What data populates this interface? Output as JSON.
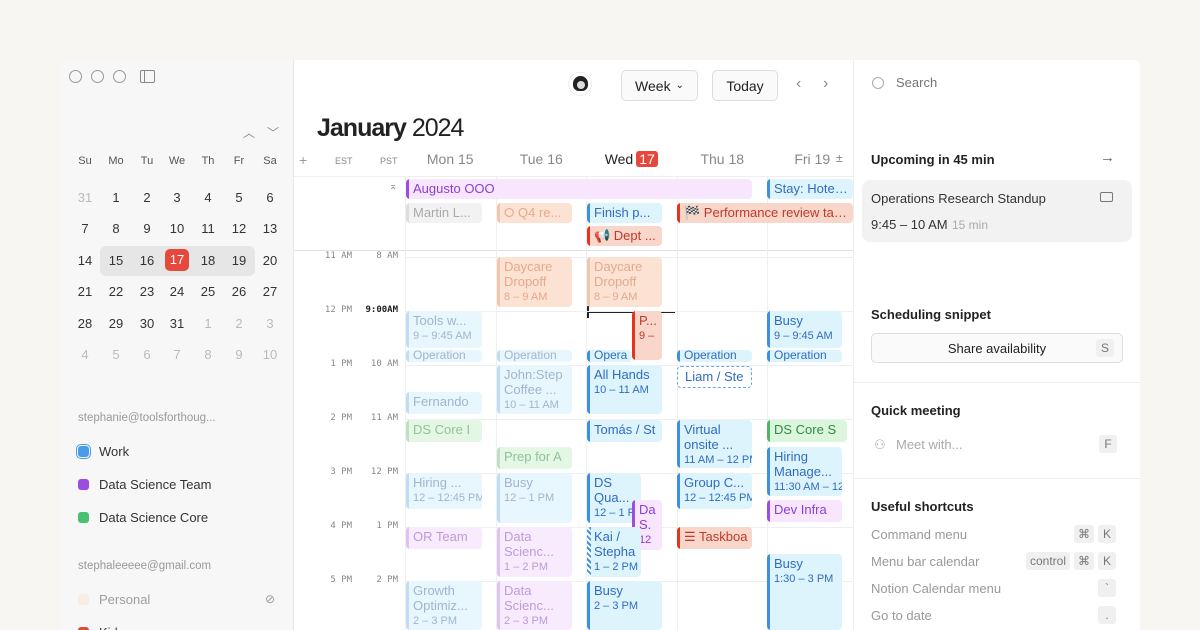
{
  "sidebar": {
    "mini_calendar": {
      "weekdays": [
        "Su",
        "Mo",
        "Tu",
        "We",
        "Th",
        "Fr",
        "Sa"
      ],
      "weeks": [
        [
          "31",
          "1",
          "2",
          "3",
          "4",
          "5",
          "6"
        ],
        [
          "7",
          "8",
          "9",
          "10",
          "11",
          "12",
          "13"
        ],
        [
          "14",
          "15",
          "16",
          "17",
          "18",
          "19",
          "20"
        ],
        [
          "21",
          "22",
          "23",
          "24",
          "25",
          "26",
          "27"
        ],
        [
          "28",
          "29",
          "30",
          "31",
          "1",
          "2",
          "3"
        ],
        [
          "4",
          "5",
          "6",
          "7",
          "8",
          "9",
          "10"
        ]
      ],
      "today": "17"
    },
    "accounts": [
      {
        "email": "stephanie@toolsforthoug...",
        "calendars": [
          {
            "name": "Work",
            "color": "#4a9ce8"
          },
          {
            "name": "Data Science Team",
            "color": "#9b4de0"
          },
          {
            "name": "Data Science Core",
            "color": "#4cc071"
          }
        ]
      },
      {
        "email": "stephaleeeee@gmail.com",
        "calendars": [
          {
            "name": "Personal",
            "color": "#fbe3d0"
          },
          {
            "name": "Kids",
            "color": "#e04a3a"
          }
        ]
      }
    ]
  },
  "header": {
    "view": "Week",
    "today": "Today",
    "month": "January",
    "year": "2024"
  },
  "timezones": [
    "EST",
    "PST"
  ],
  "days": [
    {
      "label": "Mon 15"
    },
    {
      "label": "Tue 16"
    },
    {
      "label": "Wed",
      "num": "17"
    },
    {
      "label": "Thu 18"
    },
    {
      "label": "Fri 19"
    }
  ],
  "times": {
    "est": [
      "11 AM",
      "12 PM",
      "1 PM",
      "2 PM",
      "3 PM",
      "4 PM",
      "5 PM"
    ],
    "pst": [
      "8 AM",
      "9:00AM",
      "10 AM",
      "11 AM",
      "12 PM",
      "1 PM",
      "2 PM"
    ]
  },
  "events": [
    {
      "title": "Augusto OOO",
      "scheme": "purple"
    },
    {
      "title": "Stay: Hotel P",
      "scheme": "blue"
    },
    {
      "title": "Martin L...",
      "scheme": "gray"
    },
    {
      "title": "⭘ Q4 re...",
      "scheme": "peachf"
    },
    {
      "title": "Finish p...",
      "scheme": "blue"
    },
    {
      "title": "📢 Dept ...",
      "scheme": "red"
    },
    {
      "title": "🏁 Performance review talks",
      "scheme": "red"
    },
    {
      "title": "Daycare Dropoff",
      "time": "8 – 9 AM",
      "scheme": "peachf"
    },
    {
      "title": "Daycare Dropoff",
      "time": "8 – 9 AM",
      "scheme": "peachf"
    },
    {
      "title": "Tools w...",
      "time": "9 – 9:45 AM",
      "scheme": "bluef"
    },
    {
      "title": "P...",
      "time": "9 –",
      "scheme": "red"
    },
    {
      "title": "Busy",
      "time": "9 – 9:45 AM",
      "scheme": "blue"
    },
    {
      "title": "Operation",
      "scheme": "bluef"
    },
    {
      "title": "Operation",
      "scheme": "bluef"
    },
    {
      "title": "Opera",
      "scheme": "blue"
    },
    {
      "title": "Operation",
      "scheme": "blue"
    },
    {
      "title": "Operation",
      "scheme": "blue"
    },
    {
      "title": "John:Step Coffee ...",
      "time": "10 – 11 AM",
      "scheme": "bluef"
    },
    {
      "title": "All Hands",
      "time": "10 – 11 AM",
      "scheme": "blue"
    },
    {
      "title": "Liam / Ste",
      "scheme": "dashed"
    },
    {
      "title": "Fernando",
      "scheme": "bluef"
    },
    {
      "title": "DS Core I",
      "scheme": "greenf"
    },
    {
      "title": "Tomás / St",
      "scheme": "blue"
    },
    {
      "title": "Virtual onsite ...",
      "time": "11 AM – 12 PM",
      "scheme": "blue"
    },
    {
      "title": "DS Core S",
      "scheme": "green"
    },
    {
      "title": "Prep for A",
      "scheme": "greenf"
    },
    {
      "title": "Hiring Manage...",
      "time": "11:30 AM – 12",
      "scheme": "blue"
    },
    {
      "title": "Hiring ...",
      "time": "12 – 12:45 PM",
      "scheme": "bluef"
    },
    {
      "title": "Busy",
      "time": "12 – 1 PM",
      "scheme": "bluef"
    },
    {
      "title": "DS Qua...",
      "time": "12 – 1 P",
      "scheme": "blue"
    },
    {
      "title": "Group C...",
      "time": "12 – 12:45 PM",
      "scheme": "blue"
    },
    {
      "title": "Dev Infra",
      "scheme": "purple"
    },
    {
      "title": "Da S.",
      "time": "12",
      "scheme": "purple"
    },
    {
      "title": "OR Team",
      "scheme": "purplef"
    },
    {
      "title": "Data Scienc...",
      "time": "1 – 2 PM",
      "scheme": "purplef"
    },
    {
      "title": "Kai / Stepha",
      "time": "1 – 2 PM",
      "scheme": "blue hatch"
    },
    {
      "title": "☰ Taskboa",
      "scheme": "red"
    },
    {
      "title": "Busy",
      "time": "1:30 – 3 PM",
      "scheme": "blue"
    },
    {
      "title": "Growth Optimiz...",
      "time": "2 – 3 PM",
      "scheme": "bluef"
    },
    {
      "title": "Data Scienc...",
      "time": "2 – 3 PM",
      "scheme": "purplef"
    },
    {
      "title": "Busy",
      "time": "2 – 3 PM",
      "scheme": "blue"
    }
  ],
  "right": {
    "search_placeholder": "Search",
    "upcoming_title": "Upcoming in 45 min",
    "upcoming_event": {
      "title": "Operations Research Standup",
      "time": "9:45 – 10 AM",
      "duration": "15 min"
    },
    "snippet_title": "Scheduling snippet",
    "share_label": "Share availability",
    "share_key": "S",
    "quick_title": "Quick meeting",
    "meet_placeholder": "Meet with...",
    "meet_key": "F",
    "shortcuts_title": "Useful shortcuts",
    "shortcuts": [
      {
        "label": "Command menu",
        "keys": [
          "⌘",
          "K"
        ]
      },
      {
        "label": "Menu bar calendar",
        "keys": [
          "control",
          "⌘",
          "K"
        ]
      },
      {
        "label": "Notion Calendar menu",
        "keys": [
          "`"
        ]
      },
      {
        "label": "Go to date",
        "keys": [
          "."
        ]
      }
    ]
  },
  "colors": {
    "today": "#e5483c",
    "accent": "#3d8fe0"
  }
}
